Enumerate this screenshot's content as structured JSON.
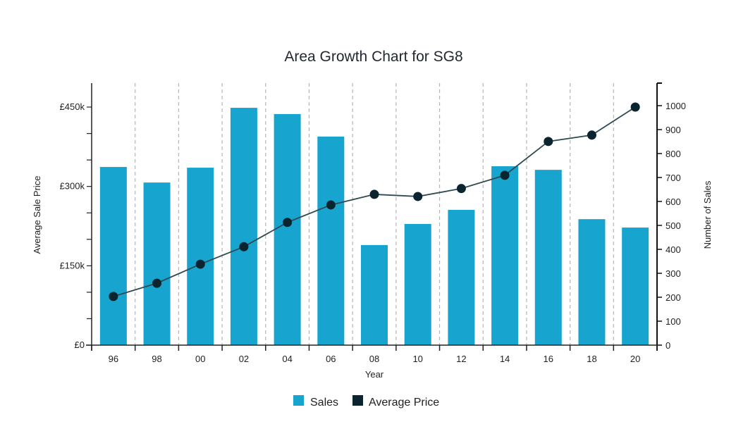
{
  "chart_data": {
    "type": "bar+line",
    "title": "Area Growth Chart for SG8",
    "xlabel": "Year",
    "ylabel_left": "Average Sale Price",
    "ylabel_right": "Number of Sales",
    "categories": [
      "96",
      "98",
      "00",
      "02",
      "04",
      "06",
      "08",
      "10",
      "12",
      "14",
      "16",
      "18",
      "20"
    ],
    "series": [
      {
        "name": "Sales",
        "type": "bar",
        "axis": "right",
        "color": "#17a5cf",
        "values": [
          744,
          679,
          741,
          991,
          965,
          871,
          418,
          506,
          565,
          747,
          732,
          526,
          491
        ]
      },
      {
        "name": "Average Price",
        "type": "line",
        "axis": "left",
        "color": "#0b2530",
        "units": "GBP thousands",
        "values": [
          92,
          117,
          153,
          186,
          232,
          265,
          285,
          281,
          296,
          321,
          385,
          397,
          450
        ]
      }
    ],
    "left_axis": {
      "ylim": [
        0,
        450
      ],
      "major_ticks": [
        0,
        150,
        300,
        450
      ],
      "major_tick_labels": [
        "£0",
        "£150k",
        "£300k",
        "£450k"
      ],
      "minor_step": 50
    },
    "right_axis": {
      "ylim": [
        0,
        1000
      ],
      "ticks": [
        0,
        100,
        200,
        300,
        400,
        500,
        600,
        700,
        800,
        900,
        1000
      ],
      "tick_labels": [
        "0",
        "100",
        "200",
        "300",
        "400",
        "500",
        "600",
        "700",
        "800",
        "900",
        "1000"
      ]
    },
    "grid": "vertical dashed between categories",
    "legend": {
      "position": "bottom-center",
      "items": [
        {
          "label": "Sales",
          "color": "#17a5cf"
        },
        {
          "label": "Average Price",
          "color": "#0b2530"
        }
      ]
    }
  }
}
